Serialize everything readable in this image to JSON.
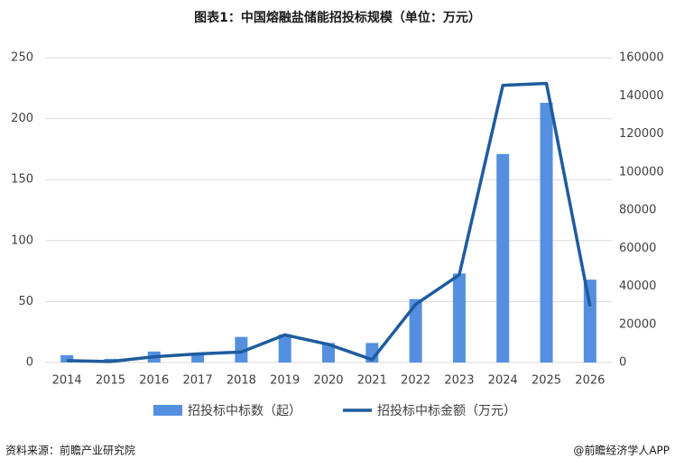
{
  "chart_data": {
    "type": "bar-line",
    "title": "图表1：中国熔融盐储能招投标规模（单位：万元）",
    "categories": [
      "2014",
      "2015",
      "2016",
      "2017",
      "2018",
      "2019",
      "2020",
      "2021",
      "2022",
      "2023",
      "2024",
      "2025",
      "2026"
    ],
    "series": [
      {
        "name": "招投标中标数（起）",
        "type": "bar",
        "color": "#5590e0",
        "values": [
          6,
          3,
          9,
          7,
          21,
          23,
          16,
          16,
          52,
          73,
          171,
          213,
          68
        ]
      },
      {
        "name": "招投标中标金额（万元）",
        "type": "line",
        "axis": "y2",
        "color": "#1f5c9e",
        "values": [
          1000,
          500,
          3000,
          4500,
          5500,
          14500,
          9500,
          1500,
          30500,
          46000,
          145500,
          146500,
          29500
        ]
      }
    ],
    "ylim": [
      0,
      250
    ],
    "yticks": [
      0,
      50,
      100,
      150,
      200,
      250
    ],
    "y2lim": [
      0,
      160000
    ],
    "y2ticks": [
      0,
      20000,
      40000,
      60000,
      80000,
      100000,
      120000,
      140000,
      160000
    ],
    "grid": true,
    "legend": "bottom",
    "source": "资料来源：前瞻产业研究院",
    "credit": "@前瞻经济学人APP"
  }
}
